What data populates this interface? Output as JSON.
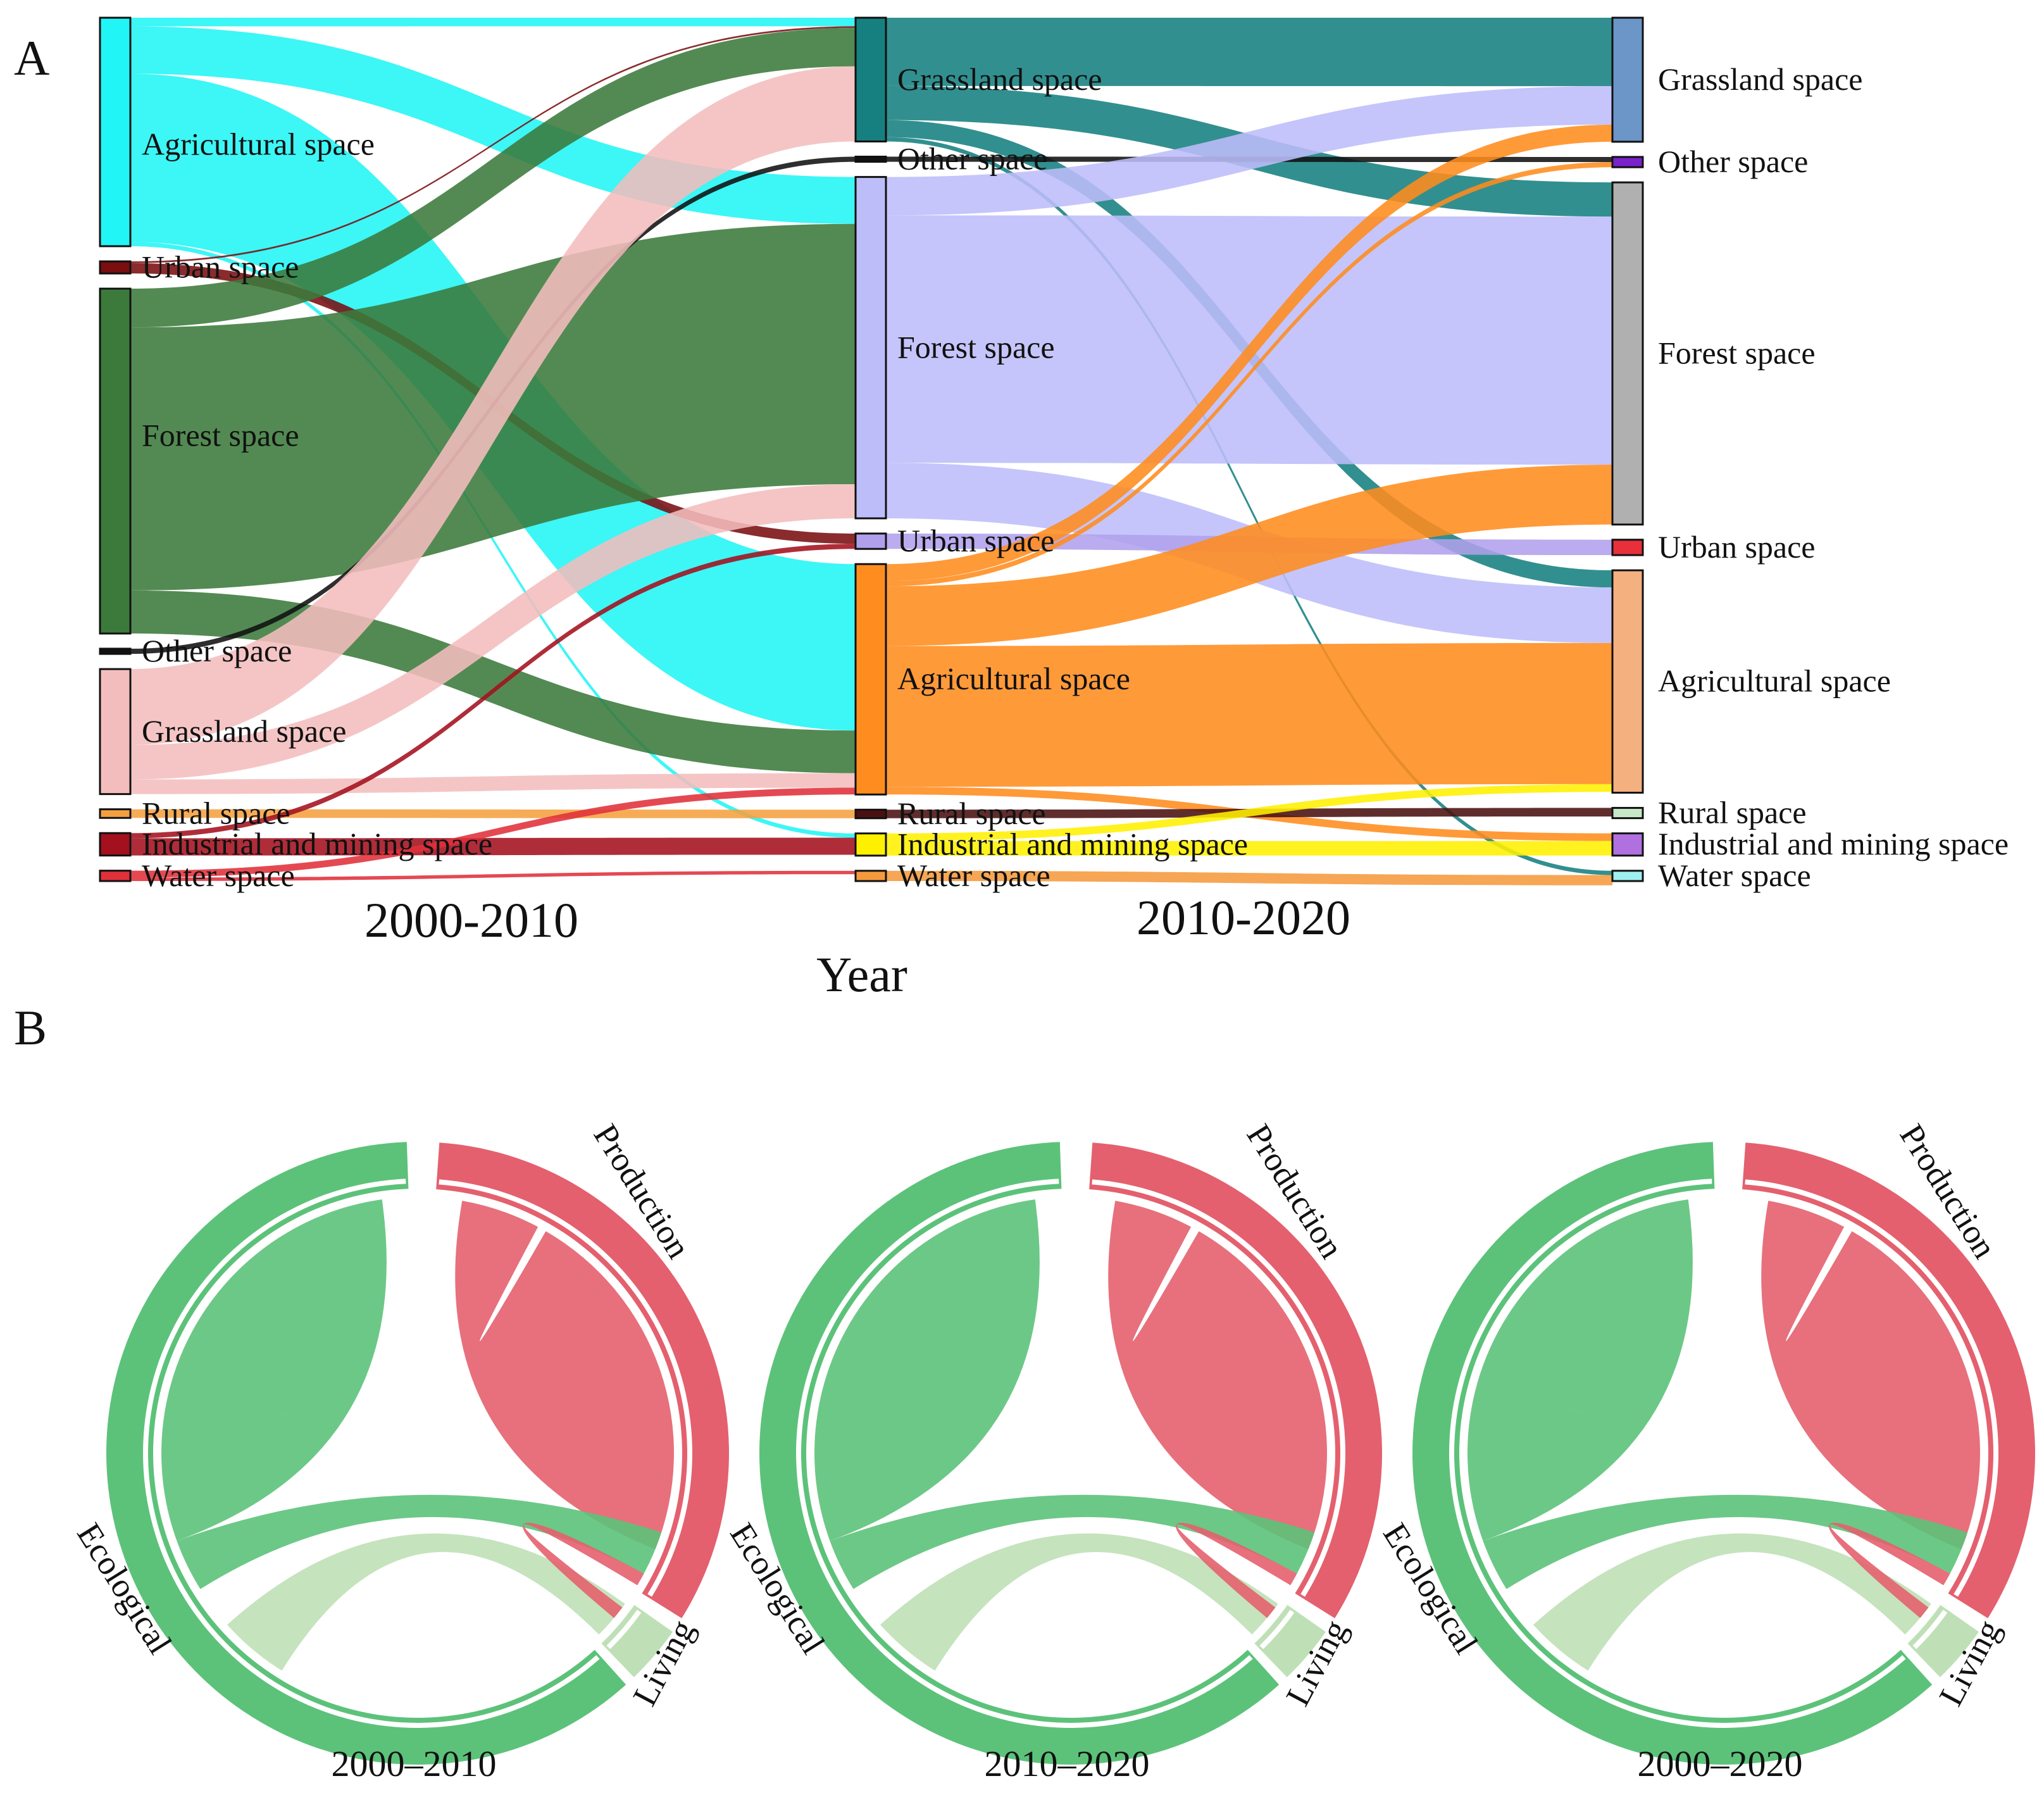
{
  "panel_a_letter": "A",
  "panel_b_letter": "B",
  "chart_data": [
    {
      "type": "sankey",
      "panel": "A",
      "xlabel": "Year",
      "period_labels": [
        "2000-2010",
        "2010-2020"
      ],
      "columns": [
        {
          "year": "2000",
          "nodes": [
            {
              "id": "agr",
              "label": "Agricultural space",
              "value": 26.5,
              "color": "#22F5F5"
            },
            {
              "id": "urb",
              "label": "Urban space",
              "value": 1.4,
              "color": "#7A0E10"
            },
            {
              "id": "for",
              "label": "Forest space",
              "value": 40.0,
              "color": "#3B7A3B"
            },
            {
              "id": "oth",
              "label": "Other space",
              "value": 0.6,
              "color": "#111111"
            },
            {
              "id": "gra",
              "label": "Grassland space",
              "value": 14.5,
              "color": "#F4BDBD"
            },
            {
              "id": "rur",
              "label": "Rural space",
              "value": 1.0,
              "color": "#F5A040"
            },
            {
              "id": "ind",
              "label": "Industrial and mining space",
              "value": 2.6,
              "color": "#A3101E"
            },
            {
              "id": "wat",
              "label": "Water space",
              "value": 1.2,
              "color": "#E0303A"
            }
          ]
        },
        {
          "year": "2010",
          "nodes": [
            {
              "id": "gra",
              "label": "Grassland space",
              "value": 14.5,
              "color": "#168080"
            },
            {
              "id": "oth",
              "label": "Other space",
              "value": 0.6,
              "color": "#111111"
            },
            {
              "id": "for",
              "label": "Forest space",
              "value": 40.0,
              "color": "#BDBDFA"
            },
            {
              "id": "urb",
              "label": "Urban space",
              "value": 1.8,
              "color": "#B0A0EC"
            },
            {
              "id": "agr",
              "label": "Agricultural space",
              "value": 27.0,
              "color": "#FF8C1E"
            },
            {
              "id": "rur",
              "label": "Rural space",
              "value": 1.0,
              "color": "#4A1010"
            },
            {
              "id": "ind",
              "label": "Industrial and mining space",
              "value": 2.6,
              "color": "#FFF000"
            },
            {
              "id": "wat",
              "label": "Water space",
              "value": 1.2,
              "color": "#F59A3C"
            }
          ]
        },
        {
          "year": "2020",
          "nodes": [
            {
              "id": "gra",
              "label": "Grassland space",
              "value": 14.5,
              "color": "#6C95C8"
            },
            {
              "id": "oth",
              "label": "Other space",
              "value": 1.2,
              "color": "#7A22CC"
            },
            {
              "id": "for",
              "label": "Forest space",
              "value": 40.0,
              "color": "#B0B0B0"
            },
            {
              "id": "urb",
              "label": "Urban space",
              "value": 1.8,
              "color": "#E8303A"
            },
            {
              "id": "agr",
              "label": "Agricultural space",
              "value": 26.0,
              "color": "#F5B080"
            },
            {
              "id": "rur",
              "label": "Rural space",
              "value": 1.2,
              "color": "#C8E6C8"
            },
            {
              "id": "ind",
              "label": "Industrial and mining space",
              "value": 2.6,
              "color": "#B070E0"
            },
            {
              "id": "wat",
              "label": "Water space",
              "value": 1.2,
              "color": "#A0F0F0"
            }
          ]
        }
      ],
      "flows_2000_2010": [
        {
          "from": "agr",
          "to": "gra",
          "value": 1.0
        },
        {
          "from": "agr",
          "to": "for",
          "value": 5.5
        },
        {
          "from": "agr",
          "to": "agr",
          "value": 19.5
        },
        {
          "from": "agr",
          "to": "ind",
          "value": 0.5
        },
        {
          "from": "urb",
          "to": "gra",
          "value": 0.2
        },
        {
          "from": "urb",
          "to": "urb",
          "value": 1.2
        },
        {
          "from": "for",
          "to": "gra",
          "value": 4.5
        },
        {
          "from": "for",
          "to": "for",
          "value": 30.5
        },
        {
          "from": "for",
          "to": "agr",
          "value": 5.0
        },
        {
          "from": "oth",
          "to": "oth",
          "value": 0.6
        },
        {
          "from": "gra",
          "to": "gra",
          "value": 8.8
        },
        {
          "from": "gra",
          "to": "for",
          "value": 4.0
        },
        {
          "from": "gra",
          "to": "agr",
          "value": 1.7
        },
        {
          "from": "rur",
          "to": "rur",
          "value": 1.0
        },
        {
          "from": "ind",
          "to": "urb",
          "value": 0.6
        },
        {
          "from": "ind",
          "to": "ind",
          "value": 2.0
        },
        {
          "from": "wat",
          "to": "agr",
          "value": 0.8
        },
        {
          "from": "wat",
          "to": "wat",
          "value": 0.4
        }
      ],
      "flows_2010_2020": [
        {
          "from": "gra",
          "to": "gra",
          "value": 8.0
        },
        {
          "from": "gra",
          "to": "for",
          "value": 4.0
        },
        {
          "from": "gra",
          "to": "agr",
          "value": 2.0
        },
        {
          "from": "gra",
          "to": "wat",
          "value": 0.5
        },
        {
          "from": "oth",
          "to": "oth",
          "value": 0.6
        },
        {
          "from": "for",
          "to": "gra",
          "value": 4.5
        },
        {
          "from": "for",
          "to": "for",
          "value": 29.0
        },
        {
          "from": "for",
          "to": "agr",
          "value": 6.5
        },
        {
          "from": "urb",
          "to": "urb",
          "value": 1.8
        },
        {
          "from": "agr",
          "to": "gra",
          "value": 2.0
        },
        {
          "from": "agr",
          "to": "oth",
          "value": 0.6
        },
        {
          "from": "agr",
          "to": "for",
          "value": 7.0
        },
        {
          "from": "agr",
          "to": "agr",
          "value": 16.5
        },
        {
          "from": "agr",
          "to": "ind",
          "value": 0.9
        },
        {
          "from": "rur",
          "to": "rur",
          "value": 1.0
        },
        {
          "from": "ind",
          "to": "agr",
          "value": 0.9
        },
        {
          "from": "ind",
          "to": "ind",
          "value": 1.7
        },
        {
          "from": "wat",
          "to": "wat",
          "value": 1.2
        }
      ]
    },
    {
      "type": "chord",
      "panel": "B",
      "caption": "2000–2010",
      "sectors": [
        {
          "name": "Production",
          "color": "#E4606E"
        },
        {
          "name": "Living",
          "color": "#BFE0B6"
        },
        {
          "name": "Ecological",
          "color": "#5CC27A"
        }
      ]
    },
    {
      "type": "chord",
      "panel": "B",
      "caption": "2010–2020",
      "sectors": [
        {
          "name": "Production",
          "color": "#E4606E"
        },
        {
          "name": "Living",
          "color": "#BFE0B6"
        },
        {
          "name": "Ecological",
          "color": "#5CC27A"
        }
      ]
    },
    {
      "type": "chord",
      "panel": "B",
      "caption": "2000–2020",
      "sectors": [
        {
          "name": "Production",
          "color": "#E4606E"
        },
        {
          "name": "Living",
          "color": "#BFE0B6"
        },
        {
          "name": "Ecological",
          "color": "#5CC27A"
        }
      ]
    }
  ]
}
